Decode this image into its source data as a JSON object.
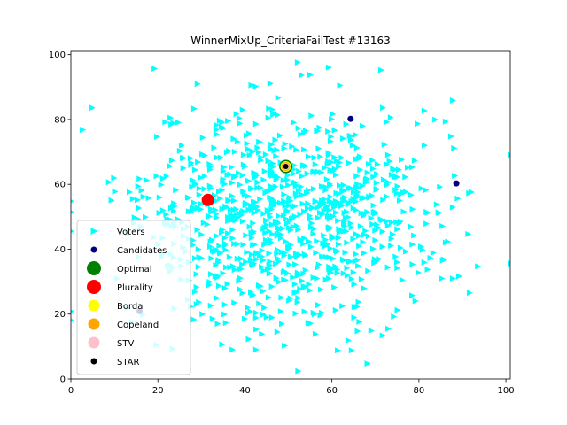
{
  "chart_data": {
    "type": "scatter",
    "title": "WinnerMixUp_CriteriaFailTest #13163",
    "xlabel": "",
    "ylabel": "",
    "xlim": [
      0,
      101
    ],
    "ylim": [
      0,
      101
    ],
    "x_ticks": [
      0,
      20,
      40,
      60,
      80,
      100
    ],
    "y_ticks": [
      0,
      20,
      40,
      60,
      80,
      100
    ],
    "grid": false,
    "legend_position": "lower-left",
    "voters": {
      "name": "Voters",
      "color": "#00ffff",
      "marker": "triangle-right",
      "count": 1000,
      "seed": 13163,
      "center": [
        50,
        50
      ],
      "spread": [
        17,
        17
      ]
    },
    "candidates": {
      "name": "Candidates",
      "color": "#000080",
      "points": [
        {
          "x": 64.3,
          "y": 80.2
        },
        {
          "x": 88.6,
          "y": 60.3
        },
        {
          "x": 49.4,
          "y": 65.5
        },
        {
          "x": 31.5,
          "y": 55.2
        },
        {
          "x": 15.8,
          "y": 20.9
        }
      ]
    },
    "winners": [
      {
        "name": "Optimal",
        "color": "#008000",
        "x": 49.4,
        "y": 65.5,
        "size": 15
      },
      {
        "name": "Plurality",
        "color": "#ff0000",
        "x": 31.5,
        "y": 55.2,
        "size": 14
      },
      {
        "name": "Borda",
        "color": "#ffff00",
        "x": 49.4,
        "y": 65.5,
        "size": 12
      },
      {
        "name": "Copeland",
        "color": "#ffa500",
        "x": 49.4,
        "y": 65.5,
        "size": 10
      },
      {
        "name": "STV",
        "color": "#ffc0cb",
        "x": 49.4,
        "y": 65.5,
        "size": 8
      },
      {
        "name": "STAR",
        "color": "#000000",
        "x": 49.4,
        "y": 65.5,
        "size": 6
      }
    ]
  }
}
